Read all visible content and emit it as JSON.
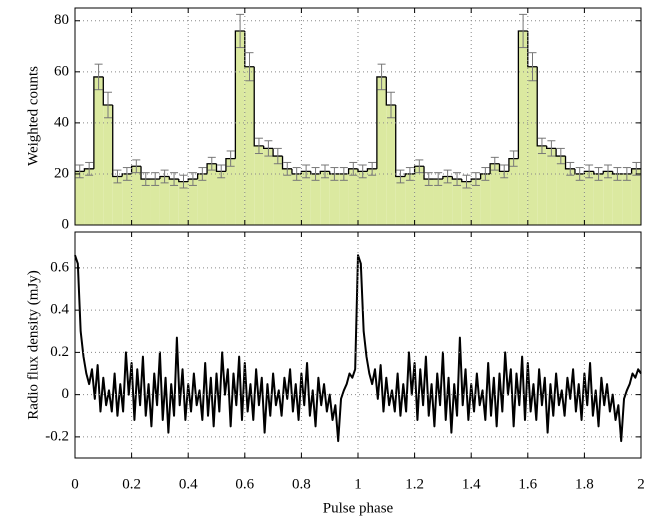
{
  "chart_data": [
    {
      "type": "histogram",
      "ylabel": "Weighted counts",
      "color": "#dbe9a0",
      "error_color": "#777777",
      "grid": true,
      "xlim": [
        0,
        2
      ],
      "xticks": [
        0,
        0.2,
        0.4,
        0.6,
        0.8,
        1,
        1.2,
        1.4,
        1.6,
        1.8,
        2
      ],
      "ylim": [
        0,
        85
      ],
      "yticks": [
        0,
        20,
        40,
        60,
        80
      ],
      "bins": [
        0,
        0.0333,
        0.0667,
        0.1,
        0.1333,
        0.1667,
        0.2,
        0.2333,
        0.2667,
        0.3,
        0.3333,
        0.3667,
        0.4,
        0.4333,
        0.4667,
        0.5,
        0.5333,
        0.5667,
        0.6,
        0.6333,
        0.6667,
        0.7,
        0.7333,
        0.7667,
        0.8,
        0.8333,
        0.8667,
        0.9,
        0.9333,
        0.9667,
        1,
        1.0333,
        1.0667,
        1.1,
        1.1333,
        1.1667,
        1.2,
        1.2333,
        1.2667,
        1.3,
        1.3333,
        1.3667,
        1.4,
        1.4333,
        1.4667,
        1.5,
        1.5333,
        1.5667,
        1.6,
        1.6333,
        1.6667,
        1.7,
        1.7333,
        1.7667,
        1.8,
        1.8333,
        1.8667,
        1.9,
        1.9333,
        1.9667,
        2
      ],
      "values": [
        21,
        22,
        58,
        47,
        19,
        20,
        23,
        18,
        18,
        19,
        18,
        17,
        18,
        20,
        24,
        21,
        26,
        76,
        62,
        31,
        30,
        27,
        22,
        20,
        21,
        20,
        21,
        20,
        20,
        22,
        21,
        22,
        58,
        47,
        19,
        20,
        23,
        18,
        18,
        19,
        18,
        17,
        18,
        20,
        24,
        21,
        26,
        76,
        62,
        31,
        30,
        27,
        22,
        20,
        21,
        20,
        21,
        20,
        20,
        22
      ],
      "errors": [
        2.5,
        2.5,
        5,
        5,
        2.5,
        2.5,
        2.5,
        2.5,
        2.5,
        2.5,
        2.5,
        2.5,
        2.5,
        2.5,
        2.5,
        2.5,
        3,
        6.5,
        5.5,
        3,
        3,
        3,
        2.5,
        2.5,
        2.5,
        2.5,
        2.5,
        2.5,
        2.5,
        2.5,
        2.5,
        2.5,
        5,
        5,
        2.5,
        2.5,
        2.5,
        2.5,
        2.5,
        2.5,
        2.5,
        2.5,
        2.5,
        2.5,
        2.5,
        2.5,
        3,
        6.5,
        5.5,
        3,
        3,
        3,
        2.5,
        2.5,
        2.5,
        2.5,
        2.5,
        2.5,
        2.5,
        2.5
      ]
    },
    {
      "type": "line",
      "ylabel": "Radio flux density (mJy)",
      "xlabel": "Pulse phase",
      "color": "#000000",
      "grid": true,
      "xlim": [
        0,
        2
      ],
      "xticks": [
        0,
        0.2,
        0.4,
        0.6,
        0.8,
        1,
        1.2,
        1.4,
        1.6,
        1.8,
        2
      ],
      "ylim": [
        -0.3,
        0.77
      ],
      "yticks": [
        -0.2,
        0,
        0.2,
        0.4,
        0.6
      ],
      "x": [
        0,
        0.01,
        0.02,
        0.03,
        0.04,
        0.05,
        0.06,
        0.07,
        0.08,
        0.09,
        0.1,
        0.11,
        0.12,
        0.13,
        0.14,
        0.15,
        0.16,
        0.17,
        0.18,
        0.19,
        0.2,
        0.21,
        0.22,
        0.23,
        0.24,
        0.25,
        0.26,
        0.27,
        0.28,
        0.29,
        0.3,
        0.31,
        0.32,
        0.33,
        0.34,
        0.35,
        0.36,
        0.37,
        0.38,
        0.39,
        0.4,
        0.41,
        0.42,
        0.43,
        0.44,
        0.45,
        0.46,
        0.47,
        0.48,
        0.49,
        0.5,
        0.51,
        0.52,
        0.53,
        0.54,
        0.55,
        0.56,
        0.57,
        0.58,
        0.59,
        0.6,
        0.61,
        0.62,
        0.63,
        0.64,
        0.65,
        0.66,
        0.67,
        0.68,
        0.69,
        0.7,
        0.71,
        0.72,
        0.73,
        0.74,
        0.75,
        0.76,
        0.77,
        0.78,
        0.79,
        0.8,
        0.81,
        0.82,
        0.83,
        0.84,
        0.85,
        0.86,
        0.87,
        0.88,
        0.89,
        0.9,
        0.91,
        0.92,
        0.93,
        0.94,
        0.95,
        0.96,
        0.97,
        0.98,
        0.99,
        1,
        1.01,
        1.02,
        1.03,
        1.04,
        1.05,
        1.06,
        1.07,
        1.08,
        1.09,
        1.1,
        1.11,
        1.12,
        1.13,
        1.14,
        1.15,
        1.16,
        1.17,
        1.18,
        1.19,
        1.2,
        1.21,
        1.22,
        1.23,
        1.24,
        1.25,
        1.26,
        1.27,
        1.28,
        1.29,
        1.3,
        1.31,
        1.32,
        1.33,
        1.34,
        1.35,
        1.36,
        1.37,
        1.38,
        1.39,
        1.4,
        1.41,
        1.42,
        1.43,
        1.44,
        1.45,
        1.46,
        1.47,
        1.48,
        1.49,
        1.5,
        1.51,
        1.52,
        1.53,
        1.54,
        1.55,
        1.56,
        1.57,
        1.58,
        1.59,
        1.6,
        1.61,
        1.62,
        1.63,
        1.64,
        1.65,
        1.66,
        1.67,
        1.68,
        1.69,
        1.7,
        1.71,
        1.72,
        1.73,
        1.74,
        1.75,
        1.76,
        1.77,
        1.78,
        1.79,
        1.8,
        1.81,
        1.82,
        1.83,
        1.84,
        1.85,
        1.86,
        1.87,
        1.88,
        1.89,
        1.9,
        1.91,
        1.92,
        1.93,
        1.94,
        1.95,
        1.96,
        1.97,
        1.98,
        1.99,
        2
      ],
      "values": [
        0.66,
        0.62,
        0.3,
        0.18,
        0.1,
        0.05,
        0.12,
        -0.02,
        0.14,
        -0.08,
        0.08,
        -0.05,
        0.02,
        -0.08,
        0.1,
        -0.1,
        0.05,
        -0.08,
        0.2,
        0,
        0.15,
        -0.12,
        0.12,
        -0.05,
        0.18,
        -0.1,
        0.05,
        -0.15,
        0.1,
        -0.05,
        0.2,
        -0.12,
        0.08,
        -0.18,
        0.05,
        -0.1,
        0.27,
        -0.05,
        0.12,
        -0.12,
        0.05,
        -0.08,
        0.1,
        -0.05,
        0.02,
        -0.12,
        0.15,
        -0.1,
        0.08,
        -0.15,
        0.1,
        -0.08,
        0.2,
        0,
        0.12,
        -0.15,
        0.1,
        -0.05,
        0.18,
        -0.12,
        0.15,
        -0.08,
        0.05,
        -0.12,
        0.12,
        -0.05,
        0.08,
        -0.18,
        0.05,
        -0.1,
        0.1,
        -0.05,
        0.02,
        -0.1,
        0.08,
        -0.02,
        0.12,
        -0.08,
        0.05,
        -0.12,
        0.1,
        -0.05,
        0.15,
        -0.1,
        0.02,
        -0.15,
        0.08,
        -0.05,
        0.05,
        -0.08,
        0,
        -0.12,
        -0.05,
        -0.22,
        -0.02,
        0.02,
        0.05,
        0.1,
        0.08,
        0.12,
        0.66,
        0.62,
        0.3,
        0.18,
        0.1,
        0.05,
        0.12,
        -0.02,
        0.14,
        -0.08,
        0.08,
        -0.05,
        0.02,
        -0.08,
        0.1,
        -0.1,
        0.05,
        -0.08,
        0.2,
        0,
        0.15,
        -0.12,
        0.12,
        -0.05,
        0.18,
        -0.1,
        0.05,
        -0.15,
        0.1,
        -0.05,
        0.2,
        -0.12,
        0.08,
        -0.18,
        0.05,
        -0.1,
        0.27,
        -0.05,
        0.12,
        -0.12,
        0.05,
        -0.08,
        0.1,
        -0.05,
        0.02,
        -0.12,
        0.15,
        -0.1,
        0.08,
        -0.15,
        0.1,
        -0.08,
        0.2,
        0,
        0.12,
        -0.15,
        0.1,
        -0.05,
        0.18,
        -0.12,
        0.15,
        -0.08,
        0.05,
        -0.12,
        0.12,
        -0.05,
        0.08,
        -0.18,
        0.05,
        -0.1,
        0.1,
        -0.05,
        0.02,
        -0.1,
        0.08,
        -0.02,
        0.12,
        -0.08,
        0.05,
        -0.12,
        0.1,
        -0.05,
        0.15,
        -0.1,
        0.02,
        -0.15,
        0.08,
        -0.05,
        0.05,
        -0.08,
        0,
        -0.12,
        -0.05,
        -0.22,
        -0.02,
        0.02,
        0.05,
        0.1,
        0.08,
        0.12,
        0.1
      ]
    }
  ]
}
